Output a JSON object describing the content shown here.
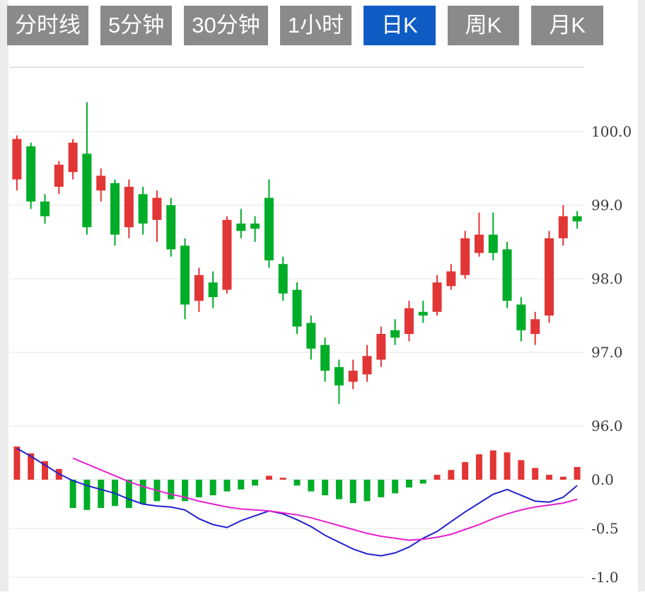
{
  "tabbar": {
    "tabs": [
      {
        "id": "timeline",
        "label": "分时线",
        "active": false
      },
      {
        "id": "5min",
        "label": "5分钟",
        "active": false
      },
      {
        "id": "30min",
        "label": "30分钟",
        "active": false
      },
      {
        "id": "1hour",
        "label": "1小时",
        "active": false
      },
      {
        "id": "daily-k",
        "label": "日K",
        "active": true
      },
      {
        "id": "weekly-k",
        "label": "周K",
        "active": false
      },
      {
        "id": "monthly-k",
        "label": "月K",
        "active": false
      }
    ],
    "active_bg": "#0f5cc5",
    "inactive_bg": "#8a8a8a"
  },
  "chart_data": {
    "type": "candlestick+macd",
    "title": "",
    "price_axis": {
      "ticks": [
        100.0,
        99.0,
        98.0,
        97.0,
        96.0
      ],
      "labels": [
        "100.0",
        "99.0",
        "98.0",
        "97.0",
        "96.0"
      ],
      "range": [
        95.8,
        100.6
      ]
    },
    "macd_axis": {
      "ticks": [
        0.0,
        -0.5,
        -1.0
      ],
      "labels": [
        "0.0",
        "-0.5",
        "-1.0"
      ],
      "range": [
        -1.1,
        0.45
      ]
    },
    "colors": {
      "up": "#e23535",
      "down": "#00ad28",
      "dif_line": "#2222cc",
      "dea_line": "#e620ce",
      "grid": "#e6e6e6",
      "top_border": "#d9d9d9",
      "axis_text": "#3a3a3a"
    },
    "candles": [
      [
        99.35,
        99.95,
        99.2,
        99.9
      ],
      [
        99.8,
        99.85,
        98.95,
        99.05
      ],
      [
        99.05,
        99.15,
        98.75,
        98.85
      ],
      [
        99.25,
        99.6,
        99.15,
        99.55
      ],
      [
        99.45,
        99.9,
        99.35,
        99.85
      ],
      [
        99.7,
        100.4,
        98.6,
        98.7
      ],
      [
        99.2,
        99.5,
        99.05,
        99.4
      ],
      [
        99.3,
        99.35,
        98.45,
        98.6
      ],
      [
        98.7,
        99.35,
        98.55,
        99.25
      ],
      [
        99.15,
        99.25,
        98.6,
        98.75
      ],
      [
        98.8,
        99.2,
        98.5,
        99.1
      ],
      [
        99.0,
        99.1,
        98.3,
        98.4
      ],
      [
        98.45,
        98.55,
        97.45,
        97.65
      ],
      [
        97.7,
        98.15,
        97.55,
        98.05
      ],
      [
        97.95,
        98.1,
        97.6,
        97.75
      ],
      [
        97.85,
        98.85,
        97.8,
        98.8
      ],
      [
        98.75,
        98.95,
        98.55,
        98.65
      ],
      [
        98.75,
        98.85,
        98.5,
        98.68
      ],
      [
        99.1,
        99.35,
        98.15,
        98.25
      ],
      [
        98.2,
        98.3,
        97.7,
        97.8
      ],
      [
        97.85,
        97.95,
        97.25,
        97.35
      ],
      [
        97.4,
        97.5,
        96.9,
        97.05
      ],
      [
        97.1,
        97.2,
        96.6,
        96.75
      ],
      [
        96.8,
        96.9,
        96.3,
        96.55
      ],
      [
        96.6,
        96.9,
        96.5,
        96.75
      ],
      [
        96.7,
        97.1,
        96.6,
        96.95
      ],
      [
        96.9,
        97.35,
        96.8,
        97.25
      ],
      [
        97.3,
        97.45,
        97.1,
        97.2
      ],
      [
        97.25,
        97.7,
        97.15,
        97.6
      ],
      [
        97.55,
        97.7,
        97.4,
        97.5
      ],
      [
        97.55,
        98.05,
        97.5,
        97.95
      ],
      [
        97.9,
        98.2,
        97.85,
        98.1
      ],
      [
        98.05,
        98.65,
        98.0,
        98.55
      ],
      [
        98.35,
        98.9,
        98.3,
        98.6
      ],
      [
        98.6,
        98.9,
        98.25,
        98.35
      ],
      [
        98.4,
        98.5,
        97.6,
        97.7
      ],
      [
        97.65,
        97.75,
        97.15,
        97.3
      ],
      [
        97.25,
        97.55,
        97.1,
        97.45
      ],
      [
        97.5,
        98.65,
        97.4,
        98.55
      ],
      [
        98.55,
        99.0,
        98.45,
        98.85
      ],
      [
        98.85,
        98.92,
        98.68,
        98.78
      ]
    ],
    "macd_hist": [
      0.34,
      0.27,
      0.19,
      0.11,
      -0.29,
      -0.31,
      -0.29,
      -0.27,
      -0.29,
      -0.25,
      -0.22,
      -0.2,
      -0.22,
      -0.18,
      -0.16,
      -0.12,
      -0.1,
      -0.06,
      0.04,
      0.02,
      -0.06,
      -0.12,
      -0.16,
      -0.2,
      -0.24,
      -0.22,
      -0.18,
      -0.14,
      -0.08,
      -0.04,
      0.05,
      0.1,
      0.18,
      0.26,
      0.3,
      0.28,
      0.2,
      0.12,
      0.05,
      0.03,
      0.13
    ],
    "dif": [
      0.32,
      0.24,
      0.15,
      0.06,
      -0.01,
      -0.06,
      -0.1,
      -0.14,
      -0.2,
      -0.25,
      -0.27,
      -0.28,
      -0.31,
      -0.4,
      -0.46,
      -0.49,
      -0.42,
      -0.37,
      -0.32,
      -0.35,
      -0.41,
      -0.48,
      -0.57,
      -0.64,
      -0.71,
      -0.76,
      -0.78,
      -0.75,
      -0.69,
      -0.6,
      -0.53,
      -0.43,
      -0.33,
      -0.24,
      -0.15,
      -0.1,
      -0.16,
      -0.22,
      -0.23,
      -0.18,
      -0.06
    ],
    "dea": [
      null,
      null,
      null,
      null,
      0.22,
      0.16,
      0.1,
      0.04,
      -0.02,
      -0.07,
      -0.11,
      -0.15,
      -0.18,
      -0.22,
      -0.25,
      -0.28,
      -0.3,
      -0.31,
      -0.32,
      -0.34,
      -0.36,
      -0.39,
      -0.43,
      -0.47,
      -0.51,
      -0.55,
      -0.58,
      -0.6,
      -0.62,
      -0.61,
      -0.59,
      -0.56,
      -0.51,
      -0.46,
      -0.4,
      -0.35,
      -0.31,
      -0.28,
      -0.26,
      -0.24,
      -0.2
    ]
  }
}
